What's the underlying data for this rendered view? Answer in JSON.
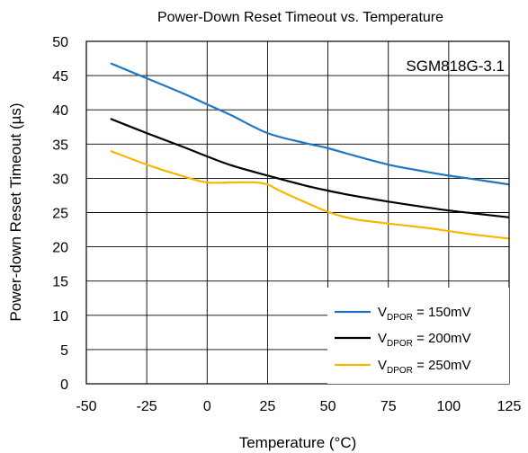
{
  "chart_data": {
    "type": "line",
    "title": "Power-Down Reset Timeout vs. Temperature",
    "xlabel": "Temperature (°C)",
    "ylabel": "Power-down Reset Timeout (µs)",
    "xlim": [
      -50,
      125
    ],
    "ylim": [
      0,
      50
    ],
    "xticks": [
      "-50",
      "-25",
      "0",
      "25",
      "50",
      "75",
      "100",
      "125"
    ],
    "yticks": [
      "0",
      "5",
      "10",
      "15",
      "20",
      "25",
      "30",
      "35",
      "40",
      "45",
      "50"
    ],
    "grid": true,
    "annotation": "SGM818G-3.1",
    "legend_position": "bottom-right",
    "series": [
      {
        "name_main": "V",
        "name_sub": "DPOR",
        "name_rest": " = 150mV",
        "color": "#1f77c4",
        "x": [
          -40,
          -25,
          -10,
          0,
          10,
          25,
          40,
          50,
          60,
          75,
          90,
          100,
          110,
          125
        ],
        "y": [
          46.8,
          44.6,
          42.4,
          40.8,
          39.2,
          36.6,
          35.2,
          34.4,
          33.4,
          32.0,
          31.0,
          30.4,
          29.9,
          29.1
        ]
      },
      {
        "name_main": "V",
        "name_sub": "DPOR",
        "name_rest": " = 200mV",
        "color": "#000000",
        "x": [
          -40,
          -25,
          -10,
          0,
          10,
          25,
          40,
          50,
          60,
          75,
          90,
          100,
          110,
          125
        ],
        "y": [
          38.7,
          36.6,
          34.6,
          33.2,
          31.9,
          30.4,
          29.0,
          28.2,
          27.5,
          26.6,
          25.8,
          25.3,
          24.9,
          24.3
        ]
      },
      {
        "name_main": "V",
        "name_sub": "DPOR",
        "name_rest": " = 250mV",
        "color": "#f5b800",
        "x": [
          -40,
          -25,
          -10,
          0,
          10,
          20,
          25,
          30,
          40,
          50,
          60,
          75,
          90,
          100,
          110,
          125
        ],
        "y": [
          34.0,
          32.0,
          30.3,
          29.4,
          29.4,
          29.4,
          29.1,
          28.2,
          26.6,
          25.1,
          24.1,
          23.4,
          22.8,
          22.3,
          21.8,
          21.2
        ]
      }
    ]
  }
}
